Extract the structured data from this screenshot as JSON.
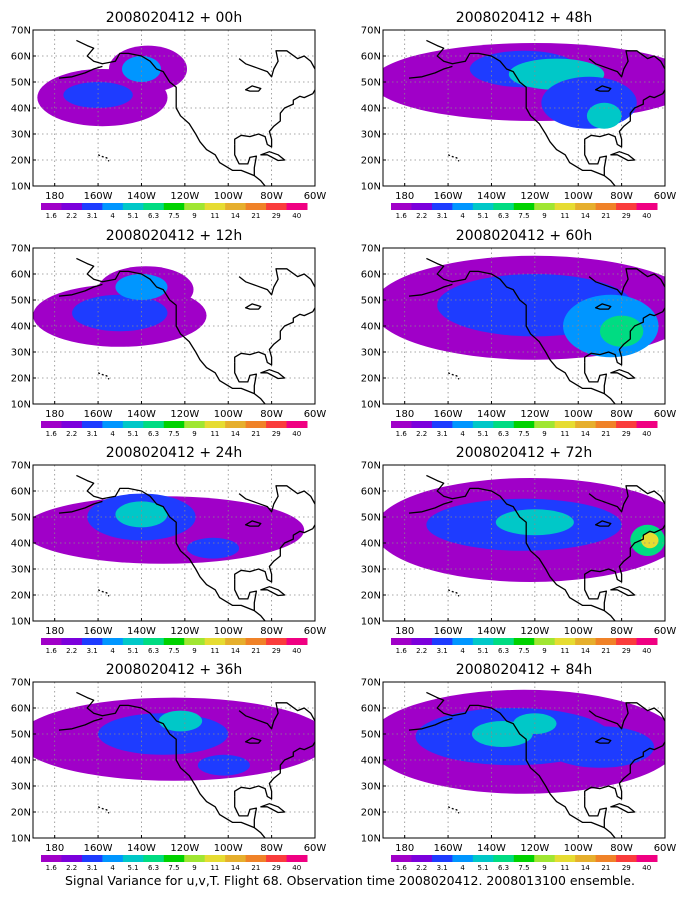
{
  "colorbar": {
    "labels": [
      "1.6",
      "2.2",
      "3.1",
      "4",
      "5.1",
      "6.3",
      "7.5",
      "9",
      "11",
      "14",
      "21",
      "29",
      "40"
    ],
    "colors": [
      "#a000c8",
      "#7b00dc",
      "#1e3cff",
      "#0096ff",
      "#00c8c8",
      "#00dc82",
      "#00d200",
      "#a0e632",
      "#e6dc32",
      "#e6af2d",
      "#f08228",
      "#fa3c3c",
      "#f00082"
    ]
  },
  "axes": {
    "y_labels": [
      "70N",
      "60N",
      "50N",
      "40N",
      "30N",
      "20N",
      "10N"
    ],
    "x_labels": [
      "180",
      "160W",
      "140W",
      "120W",
      "100W",
      "80W",
      "60W"
    ],
    "lon_range": [
      -190,
      -60
    ],
    "lat_range": [
      10,
      70
    ]
  },
  "panels": [
    {
      "title": "2008020412 + 00h",
      "blobs": [
        {
          "lon": -158,
          "lat": 44,
          "rx": 30,
          "ry": 11,
          "lvl": 0
        },
        {
          "lon": -137,
          "lat": 55,
          "rx": 18,
          "ry": 9,
          "lvl": 0
        },
        {
          "lon": -160,
          "lat": 45,
          "rx": 16,
          "ry": 5,
          "lvl": 2
        },
        {
          "lon": -140,
          "lat": 55,
          "rx": 9,
          "ry": 5,
          "lvl": 3
        }
      ]
    },
    {
      "title": "2008020412 + 48h",
      "blobs": [
        {
          "lon": -120,
          "lat": 50,
          "rx": 75,
          "ry": 15,
          "lvl": 0
        },
        {
          "lon": -125,
          "lat": 55,
          "rx": 25,
          "ry": 7,
          "lvl": 2
        },
        {
          "lon": -110,
          "lat": 53,
          "rx": 22,
          "ry": 6,
          "lvl": 4
        },
        {
          "lon": -95,
          "lat": 42,
          "rx": 22,
          "ry": 10,
          "lvl": 2
        },
        {
          "lon": -88,
          "lat": 37,
          "rx": 8,
          "ry": 5,
          "lvl": 4
        }
      ]
    },
    {
      "title": "2008020412 + 12h",
      "blobs": [
        {
          "lon": -150,
          "lat": 44,
          "rx": 40,
          "ry": 12,
          "lvl": 0
        },
        {
          "lon": -138,
          "lat": 54,
          "rx": 22,
          "ry": 9,
          "lvl": 0
        },
        {
          "lon": -150,
          "lat": 45,
          "rx": 22,
          "ry": 7,
          "lvl": 2
        },
        {
          "lon": -140,
          "lat": 55,
          "rx": 12,
          "ry": 5,
          "lvl": 3
        }
      ]
    },
    {
      "title": "2008020412 + 60h",
      "blobs": [
        {
          "lon": -120,
          "lat": 47,
          "rx": 75,
          "ry": 20,
          "lvl": 0
        },
        {
          "lon": -120,
          "lat": 48,
          "rx": 45,
          "ry": 12,
          "lvl": 2
        },
        {
          "lon": -85,
          "lat": 40,
          "rx": 22,
          "ry": 12,
          "lvl": 3
        },
        {
          "lon": -80,
          "lat": 38,
          "rx": 10,
          "ry": 6,
          "lvl": 5
        }
      ]
    },
    {
      "title": "2008020412 + 24h",
      "blobs": [
        {
          "lon": -130,
          "lat": 45,
          "rx": 65,
          "ry": 13,
          "lvl": 0
        },
        {
          "lon": -140,
          "lat": 50,
          "rx": 25,
          "ry": 9,
          "lvl": 2
        },
        {
          "lon": -140,
          "lat": 51,
          "rx": 12,
          "ry": 5,
          "lvl": 4
        },
        {
          "lon": -107,
          "lat": 38,
          "rx": 12,
          "ry": 4,
          "lvl": 2
        }
      ]
    },
    {
      "title": "2008020412 + 72h",
      "blobs": [
        {
          "lon": -122,
          "lat": 45,
          "rx": 72,
          "ry": 20,
          "lvl": 0
        },
        {
          "lon": -125,
          "lat": 47,
          "rx": 45,
          "ry": 10,
          "lvl": 2
        },
        {
          "lon": -120,
          "lat": 48,
          "rx": 18,
          "ry": 5,
          "lvl": 4
        },
        {
          "lon": -68,
          "lat": 41,
          "rx": 8,
          "ry": 6,
          "lvl": 5
        },
        {
          "lon": -67,
          "lat": 41,
          "rx": 4,
          "ry": 3,
          "lvl": 8
        }
      ]
    },
    {
      "title": "2008020412 + 36h",
      "blobs": [
        {
          "lon": -125,
          "lat": 48,
          "rx": 72,
          "ry": 16,
          "lvl": 0
        },
        {
          "lon": -130,
          "lat": 50,
          "rx": 30,
          "ry": 8,
          "lvl": 2
        },
        {
          "lon": -122,
          "lat": 55,
          "rx": 10,
          "ry": 4,
          "lvl": 4
        },
        {
          "lon": -102,
          "lat": 38,
          "rx": 12,
          "ry": 4,
          "lvl": 2
        }
      ]
    },
    {
      "title": "2008020412 + 84h",
      "blobs": [
        {
          "lon": -125,
          "lat": 47,
          "rx": 72,
          "ry": 20,
          "lvl": 0
        },
        {
          "lon": -130,
          "lat": 49,
          "rx": 45,
          "ry": 11,
          "lvl": 2
        },
        {
          "lon": -135,
          "lat": 50,
          "rx": 14,
          "ry": 5,
          "lvl": 4
        },
        {
          "lon": -120,
          "lat": 54,
          "rx": 10,
          "ry": 4,
          "lvl": 4
        },
        {
          "lon": -90,
          "lat": 45,
          "rx": 25,
          "ry": 8,
          "lvl": 2
        }
      ]
    }
  ],
  "caption": "Signal Variance for u,v,T. Flight 68. Observation time 2008020412. 2008013100 ensemble."
}
